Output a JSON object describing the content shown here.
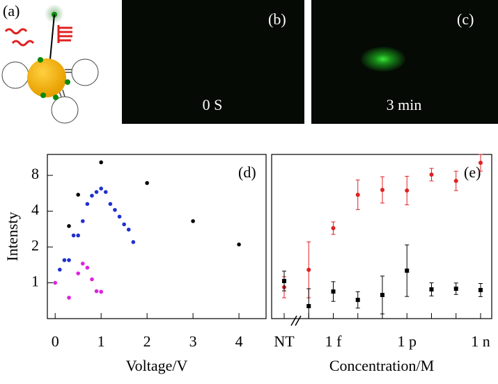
{
  "panels": {
    "a": "(a)",
    "b": "(b)",
    "c": "(c)",
    "b_caption": "0 S",
    "c_caption": "3 min"
  },
  "chart_data": [
    {
      "type": "scatter",
      "label": "(d)",
      "x_label": "Voltage/V",
      "y_label": "Intensty",
      "xlim": [
        -0.17,
        4.59
      ],
      "xticks": [
        0,
        1,
        2,
        3,
        4
      ],
      "ylim": [
        0.5,
        12
      ],
      "yticks": [
        1,
        2,
        4,
        8
      ],
      "log_y": true,
      "series": [
        {
          "color": "#000000",
          "x": [
            0.3,
            0.5,
            1,
            2,
            3,
            4
          ],
          "values": [
            3.0,
            5.5,
            10.3,
            6.9,
            3.3,
            2.1
          ]
        },
        {
          "color": "#1f2fd0",
          "x": [
            0.1,
            0.2,
            0.3,
            0.4,
            0.5,
            0.6,
            0.7,
            0.8,
            0.9,
            1.0,
            1.1,
            1.2,
            1.3,
            1.4,
            1.5,
            1.6,
            1.7
          ],
          "values": [
            1.29,
            1.55,
            1.55,
            2.5,
            2.5,
            3.3,
            4.6,
            5.4,
            5.8,
            6.2,
            5.8,
            4.6,
            4.1,
            3.6,
            3.1,
            2.8,
            2.2
          ]
        },
        {
          "color": "#e020e0",
          "x": [
            0,
            0.3,
            0.5,
            0.6,
            0.7,
            0.8,
            0.9,
            1.0
          ],
          "values": [
            1.0,
            0.75,
            1.2,
            1.45,
            1.34,
            1.07,
            0.85,
            0.84
          ]
        }
      ]
    },
    {
      "type": "errorbar",
      "label": "(e)",
      "x_label": "Concentration/M",
      "categories": [
        "NT",
        null,
        "1 f",
        null,
        null,
        "1 p",
        null,
        null,
        "1 n"
      ],
      "ylim": [
        0,
        100
      ],
      "series": [
        {
          "color": "#e02020",
          "values": [
            19.1,
            29.7,
            55.1,
            75.4,
            78.4,
            78.0,
            87.7,
            83.9,
            94.9
          ],
          "errors": [
            6.4,
            17,
            3.8,
            9,
            8,
            8.7,
            3.8,
            5.9,
            5.1
          ]
        },
        {
          "color": "#000000",
          "values": [
            22.9,
            7.6,
            16.5,
            11.4,
            14.4,
            29.2,
            17.8,
            18.2,
            17.4
          ],
          "errors": [
            6,
            10.6,
            6,
            5,
            11.5,
            15.7,
            4,
            3.5,
            4
          ]
        }
      ]
    }
  ]
}
